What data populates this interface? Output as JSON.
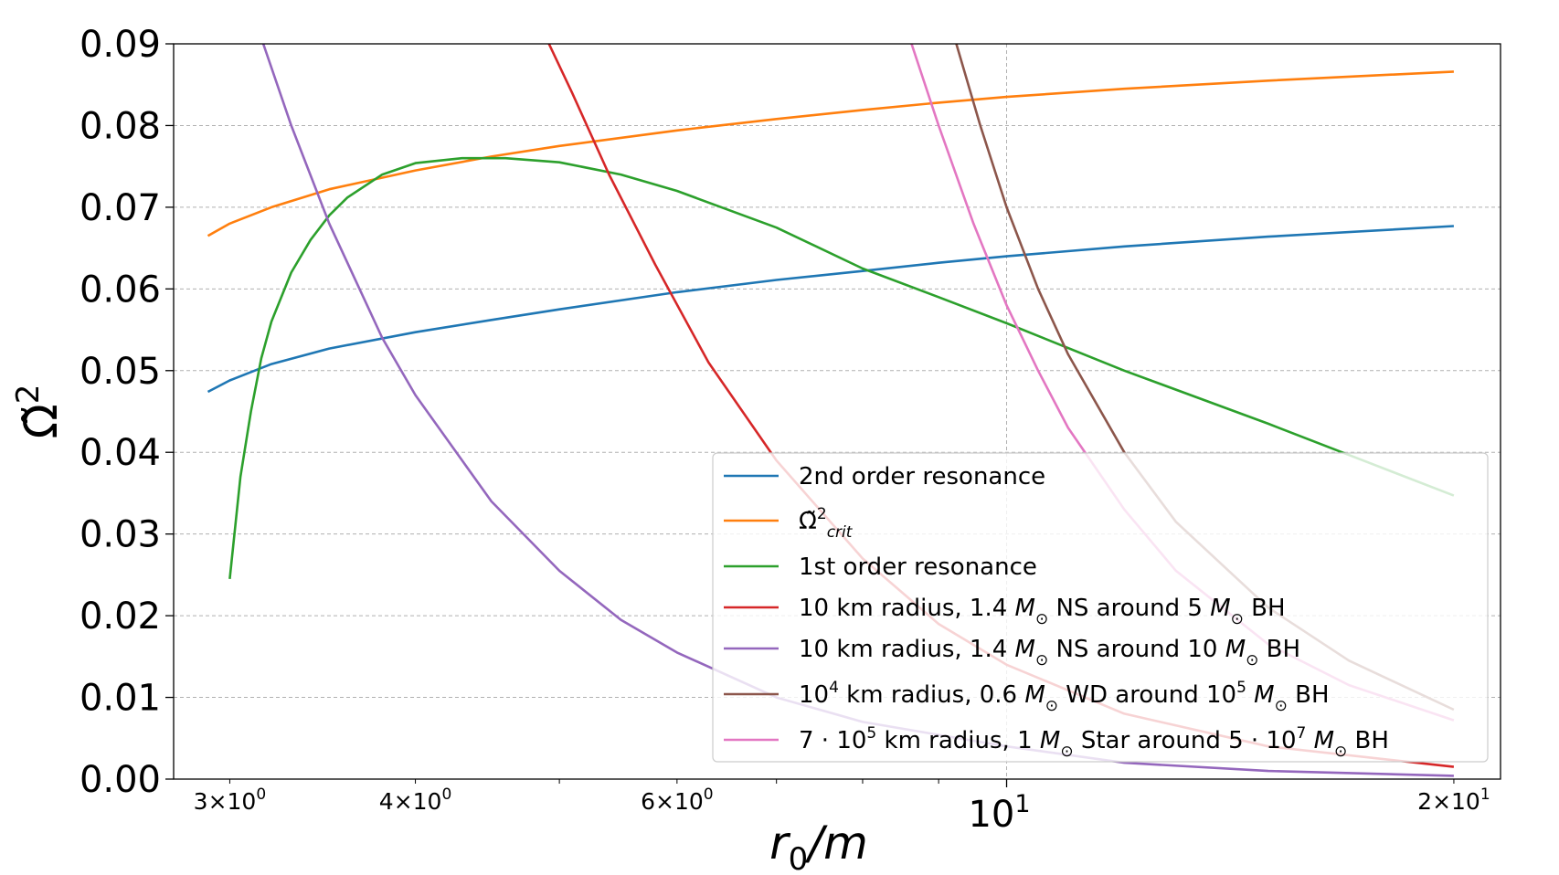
{
  "chart_data": {
    "type": "line",
    "xscale": "log",
    "xlim": [
      2.75,
      21.5
    ],
    "ylim": [
      0.0,
      0.09
    ],
    "xlabel": {
      "base": "r",
      "sub": "0",
      "rest": "/m"
    },
    "ylabel": {
      "main": "Ω̃",
      "sup": "2"
    },
    "x_major_ticks": [
      {
        "value": 10,
        "base": "10",
        "exp": "1"
      }
    ],
    "x_minor_ticks": [
      {
        "value": 3,
        "mant": "3",
        "exp": "0"
      },
      {
        "value": 4,
        "mant": "4",
        "exp": "0"
      },
      {
        "value": 6,
        "mant": "6",
        "exp": "0"
      },
      {
        "value": 20,
        "mant": "2",
        "exp": "1"
      }
    ],
    "x_minor_unlabeled": [
      5,
      7,
      8,
      9
    ],
    "y_ticks": [
      {
        "value": 0.0,
        "label": "0.00"
      },
      {
        "value": 0.01,
        "label": "0.01"
      },
      {
        "value": 0.02,
        "label": "0.02"
      },
      {
        "value": 0.03,
        "label": "0.03"
      },
      {
        "value": 0.04,
        "label": "0.04"
      },
      {
        "value": 0.05,
        "label": "0.05"
      },
      {
        "value": 0.06,
        "label": "0.06"
      },
      {
        "value": 0.07,
        "label": "0.07"
      },
      {
        "value": 0.08,
        "label": "0.08"
      },
      {
        "value": 0.09,
        "label": "0.09"
      }
    ],
    "grid": true,
    "legend_position": "lower-right",
    "series": [
      {
        "name": "2nd order resonance",
        "legend": [
          {
            "t": "2nd order resonance"
          }
        ],
        "color": "#1f77b4",
        "x": [
          2.9,
          3.0,
          3.2,
          3.5,
          4.0,
          4.5,
          5.0,
          6.0,
          7.0,
          8.0,
          9.0,
          10.0,
          12.0,
          15.0,
          20.0
        ],
        "y": [
          0.0474,
          0.0488,
          0.0508,
          0.0527,
          0.0547,
          0.0562,
          0.0575,
          0.0596,
          0.0611,
          0.0622,
          0.0632,
          0.064,
          0.0652,
          0.0664,
          0.0677
        ]
      },
      {
        "name": "Ω̃²crit",
        "legend": [
          {
            "t": "Ω̃"
          },
          {
            "t": "2",
            "sup": true
          },
          {
            "t": "crit",
            "sub": true,
            "italic": true
          }
        ],
        "color": "#ff7f0e",
        "x": [
          2.9,
          3.0,
          3.2,
          3.5,
          4.0,
          4.5,
          5.0,
          6.0,
          7.0,
          8.0,
          9.0,
          10.0,
          12.0,
          15.0,
          20.0
        ],
        "y": [
          0.0665,
          0.068,
          0.07,
          0.0722,
          0.0745,
          0.0762,
          0.0775,
          0.0794,
          0.0808,
          0.0819,
          0.0828,
          0.0835,
          0.0845,
          0.0855,
          0.0866
        ]
      },
      {
        "name": "1st order resonance",
        "legend": [
          {
            "t": "1st order resonance"
          }
        ],
        "color": "#2ca02c",
        "x": [
          3.0,
          3.05,
          3.1,
          3.15,
          3.2,
          3.3,
          3.4,
          3.5,
          3.6,
          3.8,
          4.0,
          4.3,
          4.6,
          5.0,
          5.5,
          6.0,
          7.0,
          8.0,
          9.0,
          10.0,
          12.0,
          15.0,
          20.0
        ],
        "y": [
          0.0245,
          0.037,
          0.045,
          0.0515,
          0.056,
          0.062,
          0.066,
          0.069,
          0.0712,
          0.074,
          0.0754,
          0.076,
          0.076,
          0.0755,
          0.074,
          0.072,
          0.0675,
          0.0625,
          0.059,
          0.0558,
          0.05,
          0.0435,
          0.0347
        ]
      },
      {
        "name": "10 km radius, 1.4 M☉ NS around 5 M☉ BH",
        "legend": [
          {
            "t": "10 km radius, 1.4 "
          },
          {
            "t": "M",
            "italic": true
          },
          {
            "t": "⊙",
            "sub": true
          },
          {
            "t": " NS around 5 "
          },
          {
            "t": "M",
            "italic": true
          },
          {
            "t": "⊙",
            "sub": true
          },
          {
            "t": " BH"
          }
        ],
        "color": "#d62728",
        "x": [
          4.92,
          5.1,
          5.4,
          5.8,
          6.3,
          7.0,
          8.0,
          9.0,
          10.0,
          12.0,
          15.0,
          20.0
        ],
        "y": [
          0.09,
          0.084,
          0.074,
          0.063,
          0.051,
          0.039,
          0.027,
          0.019,
          0.014,
          0.008,
          0.004,
          0.0015
        ]
      },
      {
        "name": "10 km radius, 1.4 M☉ NS around 10 M☉ BH",
        "legend": [
          {
            "t": "10 km radius, 1.4 "
          },
          {
            "t": "M",
            "italic": true
          },
          {
            "t": "⊙",
            "sub": true
          },
          {
            "t": " NS around 10 "
          },
          {
            "t": "M",
            "italic": true
          },
          {
            "t": "⊙",
            "sub": true
          },
          {
            "t": " BH"
          }
        ],
        "color": "#9467bd",
        "x": [
          3.16,
          3.3,
          3.5,
          3.8,
          4.0,
          4.5,
          5.0,
          5.5,
          6.0,
          7.0,
          8.0,
          10.0,
          12.0,
          15.0,
          20.0
        ],
        "y": [
          0.09,
          0.08,
          0.068,
          0.054,
          0.047,
          0.034,
          0.0255,
          0.0195,
          0.0155,
          0.01,
          0.007,
          0.004,
          0.002,
          0.001,
          0.0004
        ]
      },
      {
        "name": "10⁴ km radius, 0.6 M☉ WD around 10⁵ M☉ BH",
        "legend": [
          {
            "t": "10"
          },
          {
            "t": "4",
            "sup": true
          },
          {
            "t": " km radius, 0.6 "
          },
          {
            "t": "M",
            "italic": true
          },
          {
            "t": "⊙",
            "sub": true
          },
          {
            "t": " WD around 10"
          },
          {
            "t": "5",
            "sup": true
          },
          {
            "t": " "
          },
          {
            "t": "M",
            "italic": true
          },
          {
            "t": "⊙",
            "sub": true
          },
          {
            "t": " BH"
          }
        ],
        "color": "#8c564b",
        "x": [
          9.25,
          9.6,
          10.0,
          10.5,
          11.0,
          12.0,
          13.0,
          15.0,
          17.0,
          20.0
        ],
        "y": [
          0.09,
          0.08,
          0.07,
          0.06,
          0.052,
          0.04,
          0.0315,
          0.021,
          0.0145,
          0.0085
        ]
      },
      {
        "name": "7·10⁵ km radius, 1 M☉ Star around 5·10⁷ M☉ BH",
        "legend": [
          {
            "t": "7 · 10"
          },
          {
            "t": "5",
            "sup": true
          },
          {
            "t": " km radius, 1 "
          },
          {
            "t": "M",
            "italic": true
          },
          {
            "t": "⊙",
            "sub": true
          },
          {
            "t": " Star around 5 · 10"
          },
          {
            "t": "7",
            "sup": true
          },
          {
            "t": " "
          },
          {
            "t": "M",
            "italic": true
          },
          {
            "t": "⊙",
            "sub": true
          },
          {
            "t": " BH"
          }
        ],
        "color": "#e377c2",
        "x": [
          8.63,
          9.0,
          9.5,
          10.0,
          10.5,
          11.0,
          12.0,
          13.0,
          15.0,
          17.0,
          20.0
        ],
        "y": [
          0.09,
          0.08,
          0.068,
          0.058,
          0.05,
          0.043,
          0.033,
          0.0255,
          0.0165,
          0.0115,
          0.0072
        ]
      }
    ]
  }
}
